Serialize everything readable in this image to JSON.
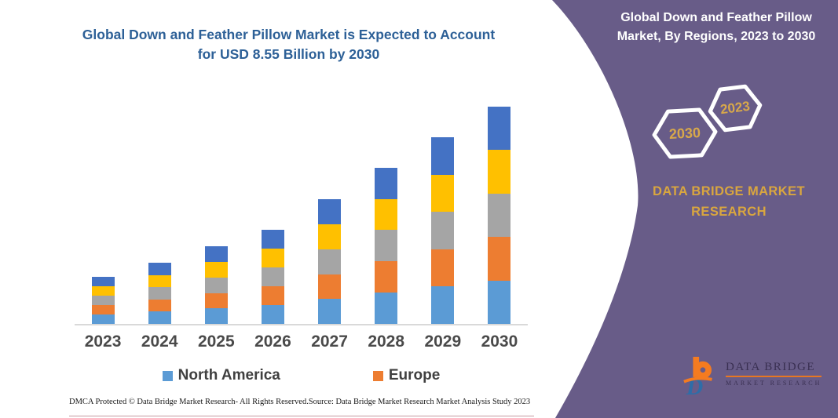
{
  "chart_data": {
    "type": "bar",
    "stacked": true,
    "title": "Global Down and Feather Pillow Market is Expected to Account for USD 8.55 Billion by 2030",
    "unit": "USD Billion",
    "categories": [
      "2023",
      "2024",
      "2025",
      "2026",
      "2027",
      "2028",
      "2029",
      "2030"
    ],
    "series": [
      {
        "name": "North America",
        "color": "#5B9BD5",
        "values": [
          0.37,
          0.48,
          0.61,
          0.74,
          0.98,
          1.23,
          1.47,
          1.71
        ]
      },
      {
        "name": "Europe",
        "color": "#ED7D31",
        "values": [
          0.37,
          0.48,
          0.61,
          0.74,
          0.98,
          1.23,
          1.47,
          1.71
        ]
      },
      {
        "name": "",
        "color": "#A5A5A5",
        "values": [
          0.37,
          0.48,
          0.61,
          0.74,
          0.98,
          1.23,
          1.47,
          1.71
        ]
      },
      {
        "name": "",
        "color": "#FFC000",
        "values": [
          0.37,
          0.48,
          0.61,
          0.74,
          0.98,
          1.23,
          1.47,
          1.71
        ]
      },
      {
        "name": "",
        "color": "#4472C4",
        "values": [
          0.37,
          0.48,
          0.61,
          0.74,
          0.98,
          1.23,
          1.47,
          1.71
        ]
      }
    ],
    "totals": [
      1.83,
      2.41,
      3.05,
      3.69,
      4.89,
      6.13,
      7.34,
      8.55
    ],
    "ylim": [
      0,
      9
    ],
    "grid": false,
    "legend_position": "bottom",
    "axis_line_color": "#D9D9D9"
  },
  "footer": {
    "dmca": "DMCA Protected © Data Bridge Market Research-  All Rights Reserved.",
    "source": "Source: Data Bridge Market Research  Market Analysis Study 2023"
  },
  "panel": {
    "title": "Global Down and Feather Pillow Market, By Regions, 2023 to 2030",
    "hexagons": [
      {
        "label": "2023"
      },
      {
        "label": "2030"
      }
    ],
    "brand_text": "DATA BRIDGE MARKET RESEARCH",
    "logo": {
      "name": "DATA BRIDGE",
      "subtitle": "MARKET RESEARCH"
    },
    "colors": {
      "background": "#685C88",
      "accent_gold": "#D9A63F",
      "hexagon_stroke": "#FFFFFF"
    }
  }
}
